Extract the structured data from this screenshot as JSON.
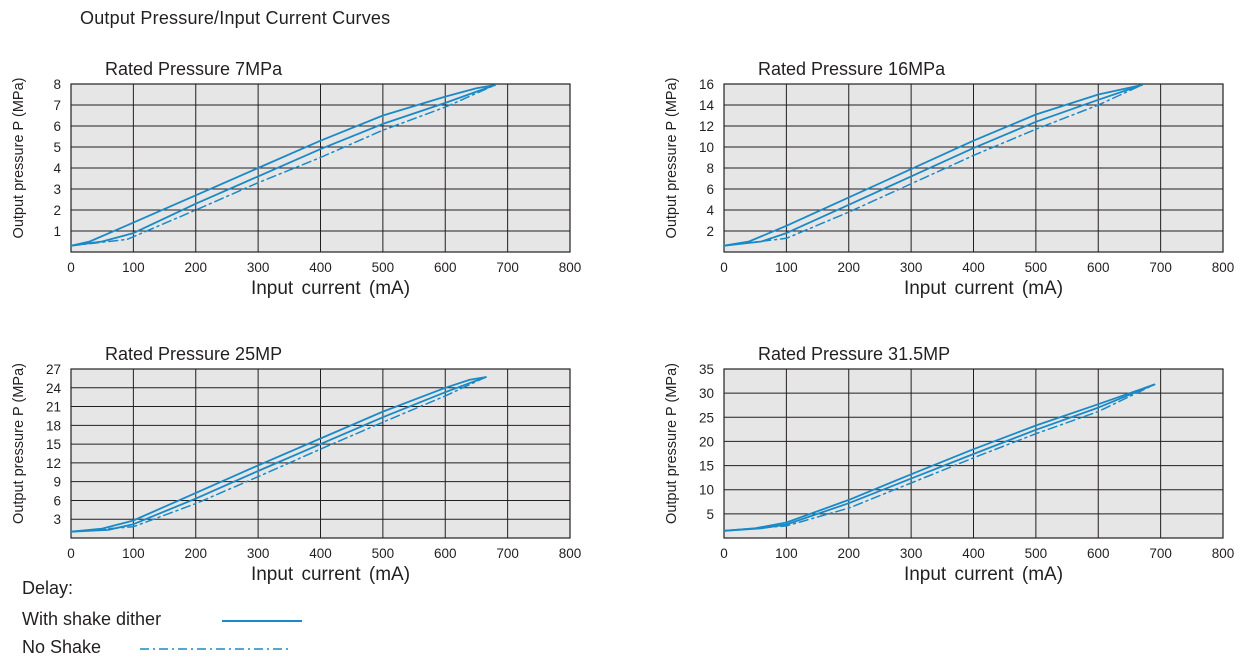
{
  "page_title": "Output Pressure/Input Current Curves",
  "colors": {
    "line": "#1a8ac7",
    "plot_bg": "#e6e6e7",
    "grid": "#231f20"
  },
  "legend": {
    "title": "Delay:",
    "items": [
      {
        "label": "With shake dither",
        "style": "solid"
      },
      {
        "label": "No Shake",
        "style": "dashdot"
      }
    ]
  },
  "chart_data": [
    {
      "type": "line",
      "title": "Rated Pressure 7MPa",
      "xlabel": "Input current (mA)",
      "ylabel": "Output pressure P (MPa)",
      "xlim": [
        0,
        800
      ],
      "ylim": [
        0,
        8
      ],
      "xticks": [
        0,
        100,
        200,
        300,
        400,
        500,
        600,
        700,
        800
      ],
      "yticks": [
        1,
        2,
        3,
        4,
        5,
        6,
        7,
        8
      ],
      "grid": true,
      "series": [
        {
          "style": "solid",
          "points": [
            [
              0,
              0.3
            ],
            [
              30,
              0.5
            ],
            [
              100,
              1.4
            ],
            [
              200,
              2.7
            ],
            [
              300,
              4.0
            ],
            [
              400,
              5.3
            ],
            [
              500,
              6.5
            ],
            [
              600,
              7.4
            ],
            [
              650,
              7.8
            ],
            [
              680,
              7.95
            ]
          ]
        },
        {
          "style": "solid",
          "points": [
            [
              0,
              0.3
            ],
            [
              50,
              0.5
            ],
            [
              100,
              0.9
            ],
            [
              200,
              2.3
            ],
            [
              300,
              3.6
            ],
            [
              400,
              4.9
            ],
            [
              500,
              6.1
            ],
            [
              600,
              7.1
            ],
            [
              680,
              7.95
            ]
          ]
        },
        {
          "style": "dashdot",
          "points": [
            [
              0,
              0.3
            ],
            [
              90,
              0.6
            ],
            [
              200,
              2.0
            ],
            [
              300,
              3.3
            ],
            [
              400,
              4.5
            ],
            [
              500,
              5.8
            ],
            [
              600,
              6.9
            ],
            [
              680,
              7.95
            ]
          ]
        }
      ]
    },
    {
      "type": "line",
      "title": "Rated Pressure 16MPa",
      "xlabel": "Input current (mA)",
      "ylabel": "Output pressure P (MPa)",
      "xlim": [
        0,
        800
      ],
      "ylim": [
        0,
        16
      ],
      "xticks": [
        0,
        100,
        200,
        300,
        400,
        500,
        600,
        700,
        800
      ],
      "yticks": [
        2,
        4,
        6,
        8,
        10,
        12,
        14,
        16
      ],
      "grid": true,
      "series": [
        {
          "style": "solid",
          "points": [
            [
              0,
              0.6
            ],
            [
              40,
              1.0
            ],
            [
              100,
              2.5
            ],
            [
              200,
              5.2
            ],
            [
              300,
              7.9
            ],
            [
              400,
              10.6
            ],
            [
              500,
              13.1
            ],
            [
              600,
              15.0
            ],
            [
              670,
              15.9
            ]
          ]
        },
        {
          "style": "solid",
          "points": [
            [
              0,
              0.6
            ],
            [
              60,
              1.0
            ],
            [
              100,
              1.8
            ],
            [
              200,
              4.5
            ],
            [
              300,
              7.2
            ],
            [
              400,
              9.9
            ],
            [
              500,
              12.4
            ],
            [
              600,
              14.5
            ],
            [
              670,
              15.9
            ]
          ]
        },
        {
          "style": "dashdot",
          "points": [
            [
              0,
              0.6
            ],
            [
              100,
              1.3
            ],
            [
              200,
              3.8
            ],
            [
              300,
              6.5
            ],
            [
              400,
              9.2
            ],
            [
              500,
              11.7
            ],
            [
              600,
              14.0
            ],
            [
              670,
              15.9
            ]
          ]
        }
      ]
    },
    {
      "type": "line",
      "title": "Rated Pressure  25MP",
      "xlabel": "Input current (mA)",
      "ylabel": "Output pressure P (MPa)",
      "xlim": [
        0,
        800
      ],
      "ylim": [
        0,
        27
      ],
      "xticks": [
        0,
        100,
        200,
        300,
        400,
        500,
        600,
        700,
        800
      ],
      "yticks": [
        3,
        6,
        9,
        12,
        15,
        18,
        21,
        24,
        27
      ],
      "grid": true,
      "series": [
        {
          "style": "solid",
          "points": [
            [
              0,
              1.0
            ],
            [
              50,
              1.5
            ],
            [
              100,
              2.8
            ],
            [
              200,
              7.2
            ],
            [
              300,
              11.6
            ],
            [
              400,
              15.9
            ],
            [
              500,
              20.2
            ],
            [
              600,
              24.0
            ],
            [
              640,
              25.3
            ],
            [
              665,
              25.7
            ]
          ]
        },
        {
          "style": "solid",
          "points": [
            [
              0,
              1.0
            ],
            [
              60,
              1.3
            ],
            [
              100,
              2.2
            ],
            [
              200,
              6.3
            ],
            [
              300,
              10.7
            ],
            [
              400,
              15.0
            ],
            [
              500,
              19.3
            ],
            [
              600,
              23.3
            ],
            [
              665,
              25.7
            ]
          ]
        },
        {
          "style": "dashdot",
          "points": [
            [
              0,
              1.0
            ],
            [
              100,
              1.8
            ],
            [
              200,
              5.5
            ],
            [
              300,
              9.8
            ],
            [
              400,
              14.2
            ],
            [
              500,
              18.5
            ],
            [
              600,
              22.7
            ],
            [
              665,
              25.7
            ]
          ]
        }
      ]
    },
    {
      "type": "line",
      "title": "Rated Pressure 31.5MP",
      "xlabel": "Input current (mA)",
      "ylabel": "Output pressure P (MPa)",
      "xlim": [
        0,
        800
      ],
      "ylim": [
        0,
        35
      ],
      "xticks": [
        0,
        100,
        200,
        300,
        400,
        500,
        600,
        700,
        800
      ],
      "yticks": [
        5,
        10,
        15,
        20,
        25,
        30,
        35
      ],
      "grid": true,
      "series": [
        {
          "style": "solid",
          "points": [
            [
              0,
              1.5
            ],
            [
              50,
              2.0
            ],
            [
              100,
              3.2
            ],
            [
              200,
              7.9
            ],
            [
              300,
              13.2
            ],
            [
              400,
              18.4
            ],
            [
              500,
              23.3
            ],
            [
              600,
              27.7
            ],
            [
              690,
              31.8
            ]
          ]
        },
        {
          "style": "solid",
          "points": [
            [
              0,
              1.5
            ],
            [
              60,
              2.0
            ],
            [
              100,
              2.8
            ],
            [
              200,
              7.2
            ],
            [
              300,
              12.3
            ],
            [
              400,
              17.4
            ],
            [
              500,
              22.4
            ],
            [
              600,
              27.0
            ],
            [
              690,
              31.8
            ]
          ]
        },
        {
          "style": "dashdot",
          "points": [
            [
              0,
              1.5
            ],
            [
              100,
              2.5
            ],
            [
              200,
              6.2
            ],
            [
              300,
              11.4
            ],
            [
              400,
              16.6
            ],
            [
              500,
              21.6
            ],
            [
              600,
              26.2
            ],
            [
              690,
              31.8
            ]
          ]
        }
      ]
    }
  ]
}
